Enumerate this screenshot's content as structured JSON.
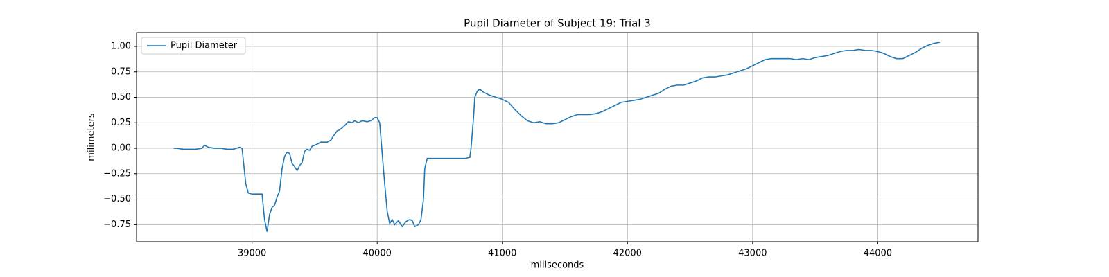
{
  "chart_data": {
    "type": "line",
    "title": "Pupil Diameter of Subject 19: Trial 3",
    "x_label": "miliseconds",
    "y_label": "milimeters",
    "x": [
      38375,
      38400,
      38450,
      38500,
      38550,
      38600,
      38620,
      38650,
      38700,
      38750,
      38800,
      38850,
      38900,
      38920,
      38950,
      38970,
      39000,
      39050,
      39080,
      39100,
      39120,
      39140,
      39160,
      39180,
      39200,
      39220,
      39240,
      39260,
      39280,
      39300,
      39320,
      39340,
      39360,
      39380,
      39400,
      39420,
      39440,
      39460,
      39480,
      39520,
      39550,
      39600,
      39630,
      39650,
      39680,
      39700,
      39730,
      39770,
      39800,
      39820,
      39850,
      39880,
      39920,
      39950,
      39980,
      40000,
      40020,
      40040,
      40060,
      40080,
      40100,
      40120,
      40140,
      40170,
      40200,
      40230,
      40260,
      40280,
      40300,
      40330,
      40350,
      40370,
      40380,
      40400,
      40450,
      40500,
      40600,
      40700,
      40740,
      40750,
      40770,
      40780,
      40800,
      40820,
      40850,
      40900,
      40950,
      41000,
      41050,
      41100,
      41150,
      41200,
      41250,
      41300,
      41350,
      41400,
      41450,
      41500,
      41550,
      41600,
      41650,
      41700,
      41750,
      41800,
      41850,
      41900,
      41950,
      42000,
      42050,
      42100,
      42150,
      42200,
      42250,
      42300,
      42350,
      42400,
      42450,
      42500,
      42550,
      42600,
      42650,
      42700,
      42750,
      42800,
      42850,
      42900,
      42950,
      43000,
      43050,
      43100,
      43150,
      43200,
      43250,
      43300,
      43350,
      43400,
      43450,
      43500,
      43550,
      43600,
      43650,
      43700,
      43750,
      43800,
      43850,
      43900,
      43950,
      44000,
      44050,
      44100,
      44150,
      44200,
      44250,
      44300,
      44350,
      44400,
      44450,
      44497
    ],
    "series": [
      {
        "name": "Pupil Diameter",
        "color": "#1f77b4",
        "values": [
          0.0,
          0.0,
          -0.01,
          -0.01,
          -0.01,
          0.0,
          0.03,
          0.01,
          0.0,
          0.0,
          -0.01,
          -0.01,
          0.01,
          0.0,
          -0.35,
          -0.44,
          -0.45,
          -0.45,
          -0.45,
          -0.7,
          -0.82,
          -0.65,
          -0.58,
          -0.56,
          -0.48,
          -0.42,
          -0.2,
          -0.08,
          -0.04,
          -0.05,
          -0.15,
          -0.18,
          -0.22,
          -0.17,
          -0.14,
          -0.03,
          -0.01,
          -0.02,
          0.02,
          0.04,
          0.06,
          0.06,
          0.08,
          0.12,
          0.17,
          0.18,
          0.21,
          0.26,
          0.25,
          0.27,
          0.25,
          0.27,
          0.26,
          0.27,
          0.3,
          0.3,
          0.25,
          -0.05,
          -0.35,
          -0.62,
          -0.74,
          -0.7,
          -0.75,
          -0.71,
          -0.77,
          -0.72,
          -0.7,
          -0.71,
          -0.77,
          -0.75,
          -0.7,
          -0.5,
          -0.2,
          -0.1,
          -0.1,
          -0.1,
          -0.1,
          -0.1,
          -0.09,
          0.0,
          0.3,
          0.5,
          0.56,
          0.58,
          0.55,
          0.52,
          0.5,
          0.48,
          0.45,
          0.38,
          0.32,
          0.27,
          0.25,
          0.26,
          0.24,
          0.24,
          0.25,
          0.28,
          0.31,
          0.33,
          0.33,
          0.33,
          0.34,
          0.36,
          0.39,
          0.42,
          0.45,
          0.46,
          0.47,
          0.48,
          0.5,
          0.52,
          0.54,
          0.58,
          0.61,
          0.62,
          0.62,
          0.64,
          0.66,
          0.69,
          0.7,
          0.7,
          0.71,
          0.72,
          0.74,
          0.76,
          0.78,
          0.81,
          0.84,
          0.87,
          0.88,
          0.88,
          0.88,
          0.88,
          0.87,
          0.88,
          0.87,
          0.89,
          0.9,
          0.91,
          0.93,
          0.95,
          0.96,
          0.96,
          0.97,
          0.96,
          0.96,
          0.95,
          0.93,
          0.9,
          0.88,
          0.88,
          0.91,
          0.94,
          0.98,
          1.01,
          1.03,
          1.04
        ]
      }
    ],
    "xlim": [
      38077,
      44801
    ],
    "ylim": [
      -0.918,
      1.136
    ],
    "xticks": [
      39000,
      40000,
      41000,
      42000,
      43000,
      44000
    ],
    "yticks": [
      {
        "value": -0.75,
        "label": "−0.75"
      },
      {
        "value": -0.5,
        "label": "−0.50"
      },
      {
        "value": -0.25,
        "label": "−0.25"
      },
      {
        "value": 0,
        "label": "0.00"
      },
      {
        "value": 0.25,
        "label": "0.25"
      },
      {
        "value": 0.5,
        "label": "0.50"
      },
      {
        "value": 0.75,
        "label": "0.75"
      },
      {
        "value": 1,
        "label": "1.00"
      }
    ],
    "grid": true,
    "legend": "upper-left"
  }
}
